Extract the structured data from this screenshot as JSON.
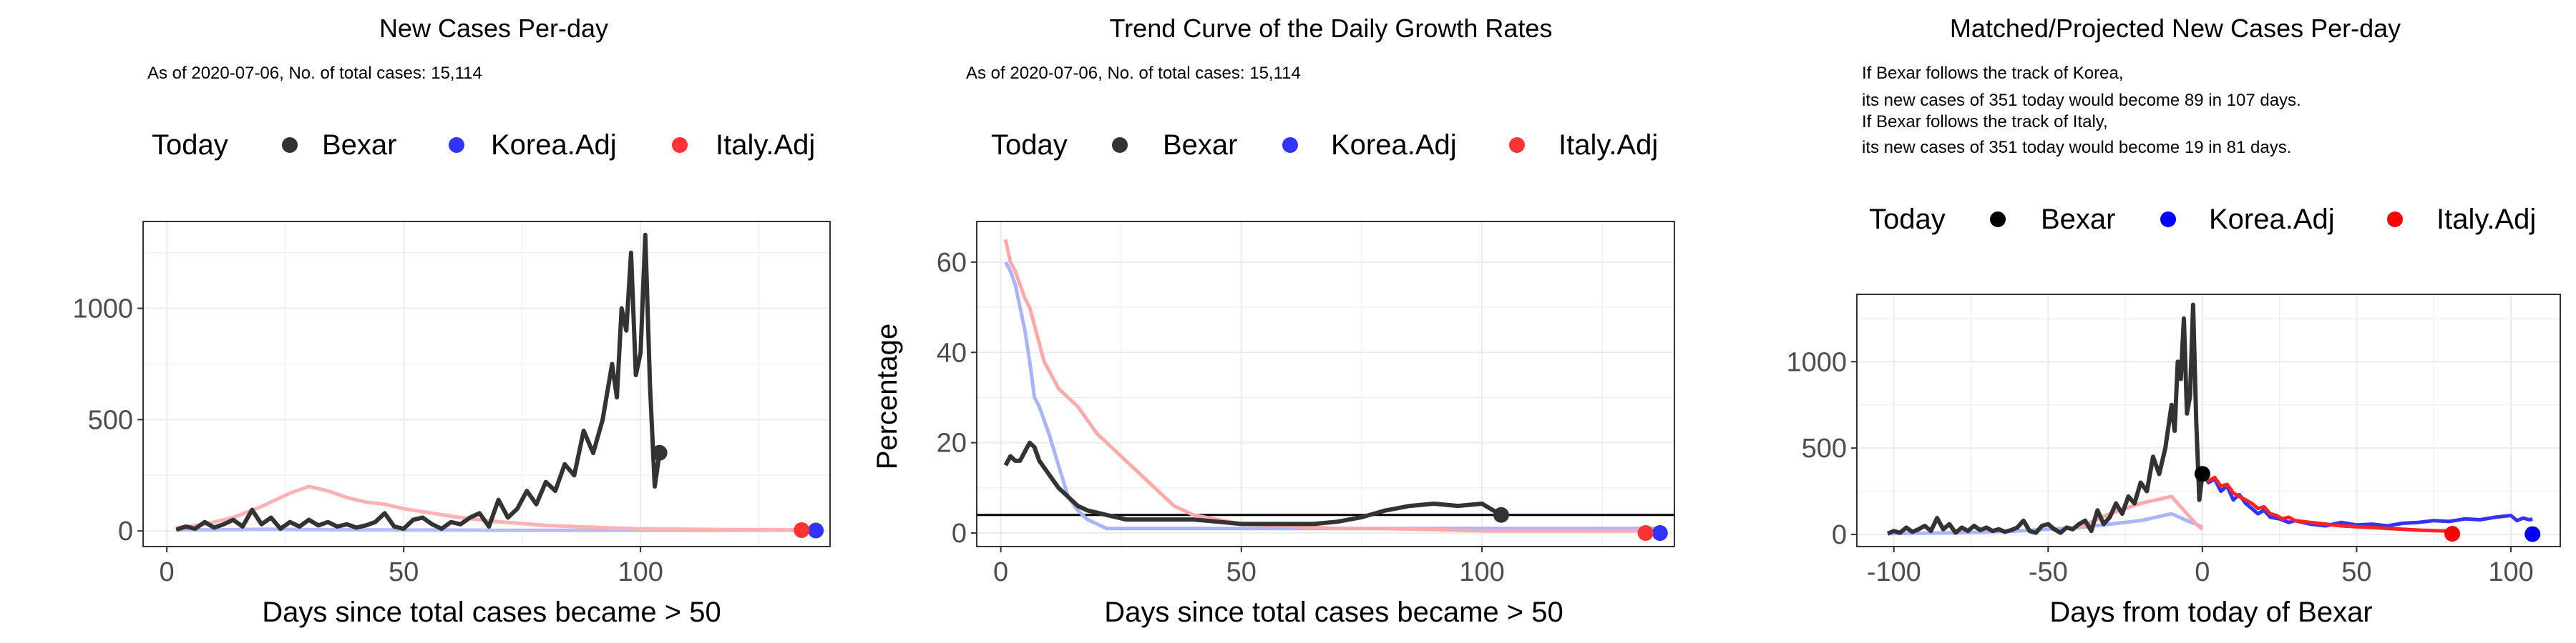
{
  "chart_data": [
    {
      "type": "line",
      "title": "New Cases Per-day",
      "subtitle": "As of 2020-07-06, No. of total cases: 15,114",
      "legend": {
        "title": "Today",
        "position": "top",
        "entries": [
          {
            "name": "Bexar",
            "color": "#333333"
          },
          {
            "name": "Korea.Adj",
            "color": "#3333ff"
          },
          {
            "name": "Italy.Adj",
            "color": "#ff3333"
          }
        ]
      },
      "xlabel": "Days since total cases became > 50",
      "ylabel": "",
      "xlim": [
        -5,
        140
      ],
      "ylim": [
        -70,
        1390
      ],
      "xticks": [
        0,
        50,
        100
      ],
      "yticks": [
        0,
        500,
        1000
      ],
      "grid": true,
      "series": [
        {
          "name": "Bexar",
          "color": "#333333",
          "x": [
            2,
            4,
            6,
            8,
            10,
            12,
            14,
            16,
            18,
            20,
            22,
            24,
            26,
            28,
            30,
            32,
            34,
            36,
            38,
            40,
            42,
            44,
            46,
            48,
            50,
            52,
            54,
            56,
            58,
            60,
            62,
            64,
            66,
            68,
            70,
            72,
            74,
            76,
            78,
            80,
            82,
            84,
            86,
            88,
            90,
            92,
            94,
            95,
            96,
            97,
            98,
            99,
            100,
            101,
            102,
            103,
            104
          ],
          "y": [
            5,
            20,
            10,
            40,
            15,
            30,
            50,
            20,
            95,
            30,
            60,
            10,
            40,
            20,
            50,
            25,
            40,
            20,
            30,
            15,
            25,
            40,
            80,
            20,
            10,
            50,
            60,
            30,
            10,
            40,
            30,
            60,
            80,
            20,
            140,
            60,
            100,
            180,
            120,
            220,
            180,
            300,
            250,
            450,
            350,
            500,
            750,
            600,
            1000,
            900,
            1250,
            700,
            800,
            1330,
            650,
            200,
            350
          ]
        },
        {
          "name": "Korea.Adj",
          "color": "#3333ff",
          "x": [
            2,
            10,
            20,
            30,
            40,
            50,
            60,
            70,
            80,
            90,
            100,
            110,
            120,
            130,
            137
          ],
          "y": [
            5,
            5,
            8,
            6,
            5,
            4,
            4,
            3,
            3,
            3,
            3,
            3,
            3,
            3,
            3
          ]
        },
        {
          "name": "Italy.Adj",
          "color": "#ff3333",
          "x": [
            2,
            8,
            14,
            20,
            26,
            30,
            34,
            38,
            42,
            46,
            50,
            56,
            62,
            68,
            74,
            80,
            86,
            92,
            100,
            110,
            120,
            130,
            134
          ],
          "y": [
            15,
            30,
            60,
            110,
            170,
            200,
            180,
            150,
            130,
            120,
            100,
            80,
            60,
            45,
            35,
            25,
            20,
            15,
            10,
            8,
            6,
            5,
            5
          ]
        }
      ],
      "today_points": [
        {
          "name": "Bexar",
          "x": 104,
          "y": 351
        },
        {
          "name": "Korea.Adj",
          "x": 137,
          "y": 2
        },
        {
          "name": "Italy.Adj",
          "x": 134,
          "y": 4
        }
      ]
    },
    {
      "type": "line",
      "title": "Trend Curve of the Daily Growth Rates",
      "subtitle": "As of 2020-07-06, No. of total cases: 15,114",
      "legend": {
        "title": "Today",
        "position": "top",
        "entries": [
          {
            "name": "Bexar",
            "color": "#333333"
          },
          {
            "name": "Korea.Adj",
            "color": "#3333ff"
          },
          {
            "name": "Italy.Adj",
            "color": "#ff3333"
          }
        ]
      },
      "xlabel": "Days since total cases became > 50",
      "ylabel": "Percentage",
      "xlim": [
        -5,
        140
      ],
      "ylim": [
        -3,
        69
      ],
      "xticks": [
        0,
        50,
        100
      ],
      "yticks": [
        0,
        20,
        40,
        60
      ],
      "grid": true,
      "hline": 4,
      "series": [
        {
          "name": "Bexar",
          "color": "#333333",
          "x": [
            1,
            2,
            3,
            4,
            5,
            6,
            7,
            8,
            10,
            12,
            14,
            16,
            18,
            20,
            22,
            24,
            26,
            28,
            30,
            35,
            40,
            45,
            50,
            55,
            60,
            65,
            70,
            75,
            80,
            85,
            90,
            95,
            100,
            104
          ],
          "y": [
            15,
            17,
            16,
            16,
            18,
            20,
            19,
            16,
            13,
            10,
            8,
            6,
            5,
            4.5,
            4,
            3.5,
            3,
            3,
            3,
            3,
            3,
            2.5,
            2,
            2,
            2,
            2,
            2.5,
            3.5,
            5,
            6,
            6.5,
            6,
            6.5,
            4
          ]
        },
        {
          "name": "Korea.Adj",
          "color": "#3333ff",
          "x": [
            1,
            2,
            3,
            4,
            5,
            6,
            7,
            8,
            10,
            12,
            14,
            16,
            18,
            20,
            22,
            25,
            30,
            40,
            50,
            60,
            80,
            100,
            120,
            137
          ],
          "y": [
            60,
            58,
            55,
            50,
            45,
            38,
            30,
            28,
            22,
            15,
            8,
            5,
            3,
            2,
            1,
            1,
            1,
            1,
            1,
            1,
            1,
            1,
            1,
            1
          ]
        },
        {
          "name": "Italy.Adj",
          "color": "#ff3333",
          "x": [
            1,
            2,
            3,
            4,
            5,
            6,
            7,
            8,
            9,
            10,
            12,
            14,
            16,
            18,
            20,
            22,
            24,
            26,
            28,
            30,
            32,
            34,
            36,
            38,
            40,
            45,
            50,
            60,
            70,
            80,
            100,
            120,
            134
          ],
          "y": [
            65,
            60,
            58,
            55,
            52,
            50,
            46,
            42,
            38,
            36,
            32,
            30,
            28,
            25,
            22,
            20,
            18,
            16,
            14,
            12,
            10,
            8,
            6,
            5,
            4,
            3,
            2,
            1.5,
            1,
            1,
            0.5,
            0.5,
            0.5
          ]
        }
      ],
      "today_points": [
        {
          "name": "Bexar",
          "x": 104,
          "y": 4
        },
        {
          "name": "Korea.Adj",
          "x": 137,
          "y": 0
        },
        {
          "name": "Italy.Adj",
          "x": 134,
          "y": 0
        }
      ]
    },
    {
      "type": "line",
      "title": "Matched/Projected New Cases Per-day",
      "annotations": [
        "If Bexar follows the track of Korea,",
        "its new cases of 351 today would become 89 in 107 days.",
        "If Bexar follows the track of Italy,",
        "its new cases of 351 today would become 19 in 81 days."
      ],
      "legend": {
        "title": "Today",
        "position": "top",
        "entries": [
          {
            "name": "Bexar",
            "color": "#000000"
          },
          {
            "name": "Korea.Adj",
            "color": "#0000ff"
          },
          {
            "name": "Italy.Adj",
            "color": "#ff0000"
          }
        ]
      },
      "xlabel": "Days from today of Bexar",
      "ylabel": "",
      "xlim": [
        -112,
        116
      ],
      "ylim": [
        -70,
        1390
      ],
      "xticks": [
        -100,
        -50,
        0,
        50,
        100
      ],
      "yticks": [
        0,
        500,
        1000
      ],
      "grid": true,
      "series": [
        {
          "name": "Bexar",
          "color": "#333333",
          "opacity": 1,
          "x": [
            -102,
            -100,
            -98,
            -96,
            -94,
            -92,
            -90,
            -88,
            -86,
            -84,
            -82,
            -80,
            -78,
            -76,
            -74,
            -72,
            -70,
            -68,
            -66,
            -64,
            -62,
            -60,
            -58,
            -56,
            -54,
            -52,
            -50,
            -48,
            -46,
            -44,
            -42,
            -40,
            -38,
            -36,
            -34,
            -32,
            -30,
            -28,
            -26,
            -24,
            -22,
            -20,
            -18,
            -16,
            -14,
            -12,
            -10,
            -9,
            -8,
            -7,
            -6,
            -5,
            -4,
            -3,
            -2,
            -1,
            0
          ],
          "y": [
            5,
            20,
            10,
            40,
            15,
            30,
            50,
            20,
            95,
            30,
            60,
            10,
            40,
            20,
            50,
            25,
            40,
            20,
            30,
            15,
            25,
            40,
            80,
            20,
            10,
            50,
            60,
            30,
            10,
            40,
            30,
            60,
            80,
            20,
            140,
            60,
            100,
            180,
            120,
            220,
            180,
            300,
            250,
            450,
            350,
            500,
            750,
            600,
            1000,
            900,
            1250,
            700,
            800,
            1330,
            650,
            200,
            350
          ]
        },
        {
          "name": "Korea.Adj (history)",
          "color": "#aab4ff",
          "opacity": 1,
          "x": [
            -102,
            -80,
            -60,
            -40,
            -30,
            -20,
            -15,
            -10,
            -5,
            -2,
            0
          ],
          "y": [
            5,
            10,
            20,
            40,
            60,
            80,
            100,
            120,
            80,
            60,
            40
          ]
        },
        {
          "name": "Italy.Adj (history)",
          "color": "#ffaaaa",
          "opacity": 1,
          "x": [
            -40,
            -35,
            -30,
            -25,
            -20,
            -15,
            -10,
            -8,
            -5,
            -2,
            0
          ],
          "y": [
            40,
            80,
            120,
            150,
            180,
            200,
            220,
            180,
            120,
            60,
            30
          ]
        },
        {
          "name": "Korea.Adj",
          "color": "#3333ff",
          "opacity": 1,
          "x": [
            0,
            2,
            4,
            6,
            8,
            10,
            12,
            14,
            16,
            18,
            20,
            22,
            25,
            28,
            30,
            35,
            40,
            45,
            50,
            55,
            60,
            65,
            70,
            75,
            80,
            85,
            90,
            95,
            100,
            102,
            104,
            106,
            107
          ],
          "y": [
            351,
            300,
            320,
            250,
            280,
            200,
            230,
            180,
            150,
            120,
            140,
            100,
            90,
            70,
            80,
            60,
            50,
            70,
            55,
            60,
            50,
            65,
            70,
            80,
            75,
            90,
            85,
            100,
            110,
            80,
            95,
            85,
            89
          ]
        },
        {
          "name": "Italy.Adj",
          "color": "#ff2222",
          "opacity": 1,
          "x": [
            0,
            2,
            4,
            6,
            8,
            10,
            12,
            14,
            16,
            18,
            20,
            22,
            24,
            26,
            28,
            30,
            35,
            40,
            45,
            50,
            55,
            60,
            65,
            70,
            75,
            80,
            81
          ],
          "y": [
            351,
            310,
            330,
            280,
            290,
            240,
            220,
            200,
            180,
            150,
            160,
            120,
            110,
            90,
            100,
            80,
            70,
            60,
            50,
            45,
            40,
            35,
            30,
            25,
            22,
            20,
            19
          ]
        }
      ],
      "today_points": [
        {
          "name": "Bexar",
          "x": 0,
          "y": 351
        },
        {
          "name": "Korea.Adj",
          "x": 107,
          "y": 2
        },
        {
          "name": "Italy.Adj",
          "x": 81,
          "y": 4
        }
      ]
    }
  ]
}
